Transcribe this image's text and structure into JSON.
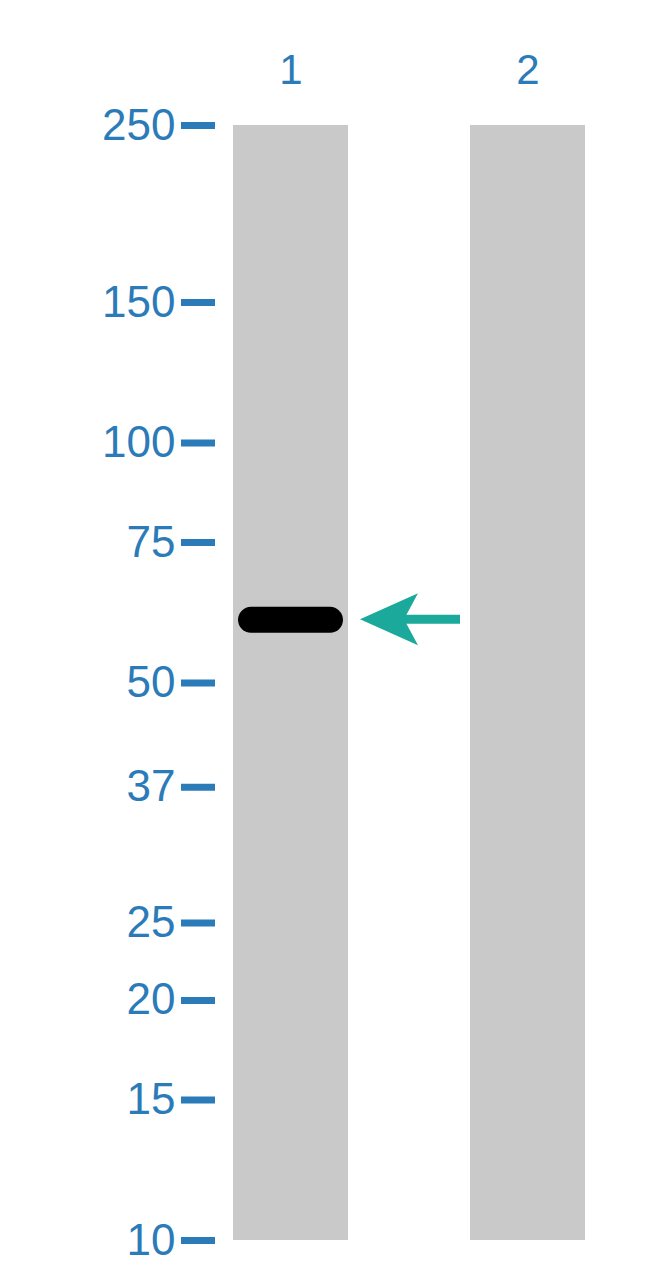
{
  "chart_data": {
    "type": "western_blot",
    "categories": [
      "1",
      "2"
    ],
    "values": [
      60,
      null
    ],
    "color": "#000000",
    "log": "y",
    "ylim": [
      10,
      250
    ],
    "yticks": [
      10,
      15,
      20,
      25,
      37,
      50,
      75,
      100,
      150,
      250
    ]
  }
}
